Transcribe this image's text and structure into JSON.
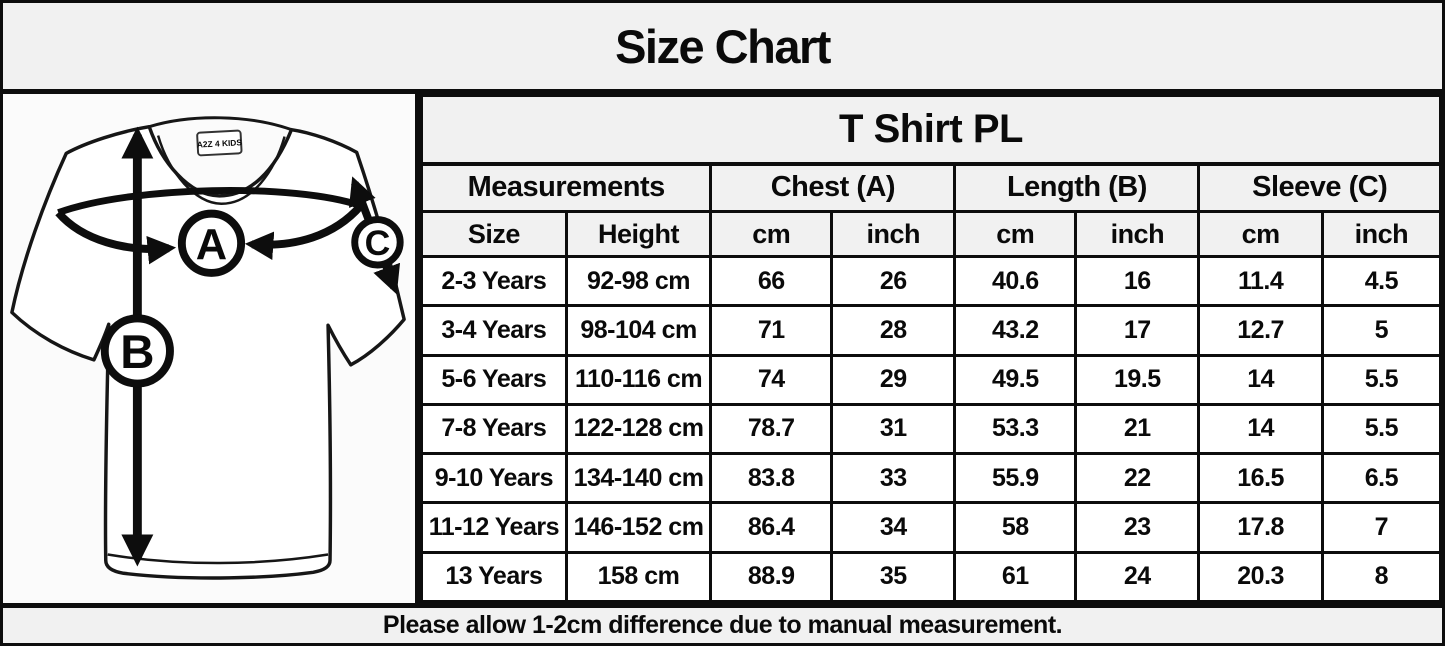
{
  "chart_data": {
    "type": "table",
    "title": "Size Chart",
    "subtitle": "T Shirt PL",
    "group_headers": [
      "Measurements",
      "Chest (A)",
      "Length (B)",
      "Sleeve (C)"
    ],
    "columns": [
      "Size",
      "Height",
      "cm",
      "inch",
      "cm",
      "inch",
      "cm",
      "inch"
    ],
    "rows": [
      [
        "2-3 Years",
        "92-98 cm",
        "66",
        "26",
        "40.6",
        "16",
        "11.4",
        "4.5"
      ],
      [
        "3-4 Years",
        "98-104 cm",
        "71",
        "28",
        "43.2",
        "17",
        "12.7",
        "5"
      ],
      [
        "5-6 Years",
        "110-116 cm",
        "74",
        "29",
        "49.5",
        "19.5",
        "14",
        "5.5"
      ],
      [
        "7-8 Years",
        "122-128 cm",
        "78.7",
        "31",
        "53.3",
        "21",
        "14",
        "5.5"
      ],
      [
        "9-10 Years",
        "134-140 cm",
        "83.8",
        "33",
        "55.9",
        "22",
        "16.5",
        "6.5"
      ],
      [
        "11-12 Years",
        "146-152 cm",
        "86.4",
        "34",
        "58",
        "23",
        "17.8",
        "7"
      ],
      [
        "13 Years",
        "158 cm",
        "88.9",
        "35",
        "61",
        "24",
        "20.3",
        "8"
      ]
    ],
    "note": "Please allow 1-2cm difference due to manual measurement.",
    "layout": {
      "grid": "on",
      "header_rows": 3,
      "data_rows": 7,
      "data_columns": 8
    }
  },
  "illustration": {
    "tag_label": "A2Z 4 KIDS",
    "markers": {
      "a": "A",
      "b": "B",
      "c": "C"
    }
  },
  "colors": {
    "border": "#0d0d0d",
    "header_background": "#f1f1f1",
    "cell_background": "#ffffff",
    "panel_background": "#fbfbfb",
    "text": "#0a0a0a"
  }
}
